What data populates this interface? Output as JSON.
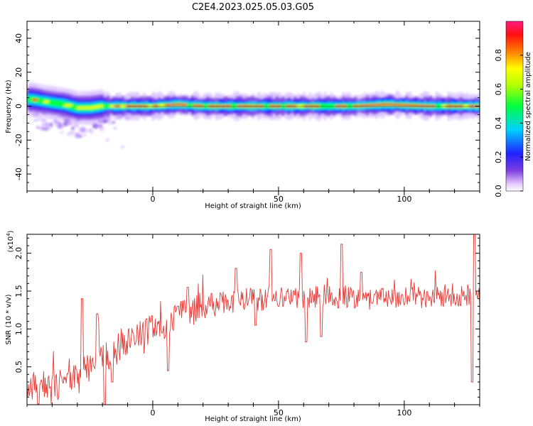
{
  "title": "C2E4.2023.025.05.03.G05",
  "chart_data": [
    {
      "type": "heatmap",
      "xlabel": "Height of straight line (km)",
      "ylabel": "Frequency (Hz)",
      "xlim": [
        -50,
        130
      ],
      "ylim": [
        -50,
        50
      ],
      "x_ticks": [
        0,
        50,
        100
      ],
      "y_ticks": [
        -40,
        -20,
        0,
        20,
        40
      ],
      "grid": false,
      "colorbar": {
        "label": "Normalized spectral amplitude",
        "range": [
          0,
          1
        ],
        "ticks": [
          "0.0",
          "0.2",
          "0.4",
          "0.6",
          "0.8"
        ],
        "colormap": "rainbow: white-purple-blue-cyan-green-yellow-red-pink"
      },
      "ridge": {
        "description_hz_vs_km": "dominant signal centered near 0 Hz across the height range; broader and offset up to ~5 Hz at low heights; scattered weak energy down to -25 Hz between -50 and -10 km",
        "center_points": [
          [
            -48,
            4
          ],
          [
            -44,
            3
          ],
          [
            -40,
            2
          ],
          [
            -35,
            1
          ],
          [
            -30,
            -1
          ],
          [
            -25,
            -1
          ],
          [
            -20,
            0
          ],
          [
            -10,
            0
          ],
          [
            0,
            0
          ],
          [
            10,
            1
          ],
          [
            20,
            0
          ],
          [
            50,
            0
          ],
          [
            80,
            0
          ],
          [
            93,
            1
          ],
          [
            110,
            0
          ],
          [
            130,
            0
          ]
        ],
        "max_hz": 5,
        "min_hz": -25
      }
    },
    {
      "type": "line",
      "xlabel": "Height of straight line (km)",
      "ylabel": "SNR (10 * v/v)",
      "multiplier": "(x10",
      "multiplier_exp": "4",
      "multiplier_close": ")",
      "xlim": [
        -50,
        130
      ],
      "ylim": [
        0,
        2.25
      ],
      "x_ticks": [
        0,
        50,
        100
      ],
      "y_ticks": [
        "0.5",
        "1.0",
        "1.5",
        "2.0"
      ],
      "grid": false,
      "series": [
        {
          "color": "#e53935",
          "trend": [
            [
              -50,
              0.2
            ],
            [
              -40,
              0.2
            ],
            [
              -30,
              0.35
            ],
            [
              -20,
              0.6
            ],
            [
              -10,
              0.85
            ],
            [
              0,
              1.0
            ],
            [
              10,
              1.15
            ],
            [
              20,
              1.3
            ],
            [
              30,
              1.35
            ],
            [
              40,
              1.4
            ],
            [
              50,
              1.4
            ],
            [
              60,
              1.4
            ],
            [
              70,
              1.45
            ],
            [
              80,
              1.4
            ],
            [
              90,
              1.4
            ],
            [
              100,
              1.4
            ],
            [
              110,
              1.45
            ],
            [
              120,
              1.45
            ],
            [
              130,
              1.45
            ]
          ],
          "peaks": [
            [
              -28,
              1.4
            ],
            [
              -22,
              1.2
            ],
            [
              10,
              1.3
            ],
            [
              14,
              1.55
            ],
            [
              33,
              1.8
            ],
            [
              47,
              2.05
            ],
            [
              59,
              2.0
            ],
            [
              75,
              2.12
            ],
            [
              83,
              1.75
            ],
            [
              128,
              2.25
            ]
          ],
          "troughs": [
            [
              -19,
              0.0
            ],
            [
              -16,
              0.3
            ],
            [
              6,
              0.45
            ],
            [
              41,
              1.05
            ],
            [
              61,
              0.83
            ],
            [
              67,
              0.9
            ],
            [
              127,
              0.3
            ]
          ]
        }
      ]
    }
  ]
}
